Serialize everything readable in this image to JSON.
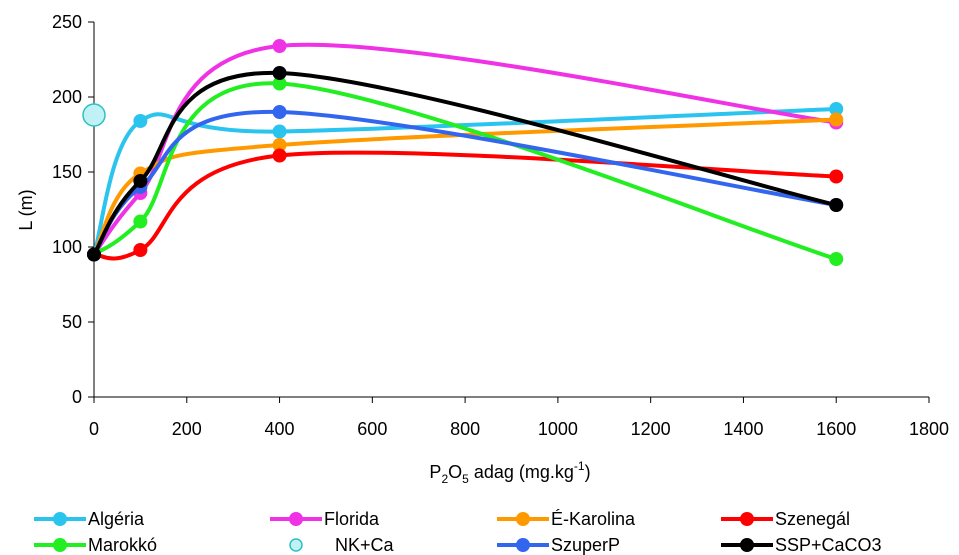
{
  "chart_data": {
    "type": "line",
    "title": "",
    "ylabel": "L (m)",
    "xlabel": {
      "base": "P",
      "sub1": "2",
      "mid": "O",
      "sub2": "5",
      "rest": " adag (mg.kg",
      "sup": "-1",
      "close": ")"
    },
    "xlim": [
      0,
      1800
    ],
    "ylim": [
      0,
      250
    ],
    "xticks": [
      0,
      200,
      400,
      600,
      800,
      1000,
      1200,
      1400,
      1600,
      1800
    ],
    "yticks": [
      0,
      50,
      100,
      150,
      200,
      250
    ],
    "grid": false,
    "smooth": true,
    "legend_position": "bottom",
    "series": [
      {
        "name": "Algéria",
        "color": "#2bc4ee",
        "x": [
          0,
          100,
          400,
          1600
        ],
        "y": [
          95,
          184,
          177,
          192
        ]
      },
      {
        "name": "Florida",
        "color": "#f032e6",
        "x": [
          0,
          100,
          400,
          1600
        ],
        "y": [
          95,
          136,
          234,
          183
        ]
      },
      {
        "name": "É-Karolina",
        "color": "#ff9900",
        "x": [
          0,
          100,
          400,
          1600
        ],
        "y": [
          95,
          149,
          168,
          185
        ]
      },
      {
        "name": "Szenegál",
        "color": "#ff0000",
        "x": [
          0,
          100,
          400,
          1600
        ],
        "y": [
          95,
          98,
          161,
          147
        ]
      },
      {
        "name": "Marokkó",
        "color": "#22ee22",
        "x": [
          0,
          100,
          400,
          1600
        ],
        "y": [
          95,
          117,
          209,
          92
        ]
      },
      {
        "name": "NK+Ca",
        "color": "#2cc1c4",
        "fill": "#bff1f5",
        "marker_only": true,
        "x": [
          0
        ],
        "y": [
          188
        ]
      },
      {
        "name": "SzuperP",
        "color": "#3366ee",
        "x": [
          0,
          100,
          400,
          1600
        ],
        "y": [
          95,
          140,
          190,
          128
        ]
      },
      {
        "name": "SSP+CaCO3",
        "color": "#000000",
        "x": [
          0,
          100,
          400,
          1600
        ],
        "y": [
          95,
          144,
          216,
          128
        ]
      }
    ]
  }
}
